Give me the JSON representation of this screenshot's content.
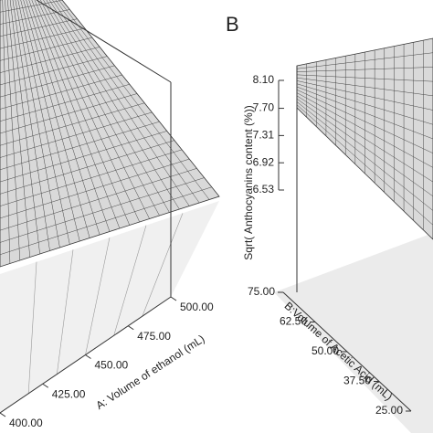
{
  "chart_data": [
    {
      "type": "surface",
      "x_label": "A: Volume of ethanol (mL)",
      "xlim": [
        400,
        500
      ],
      "xticks": [
        {
          "value": 400,
          "label": "400.00"
        },
        {
          "value": 425,
          "label": "425.00"
        },
        {
          "value": 450,
          "label": "450.00"
        },
        {
          "value": 475,
          "label": "475.00"
        },
        {
          "value": 500,
          "label": "500.00"
        }
      ],
      "color": "#d9d9d9"
    },
    {
      "type": "surface",
      "panel_label": "B",
      "z_label": "Sqrt( Anthocyanins content (%))",
      "zlim": [
        6.53,
        8.1
      ],
      "zticks": [
        {
          "value": 6.53,
          "label": "6.53"
        },
        {
          "value": 6.92,
          "label": "6.92"
        },
        {
          "value": 7.31,
          "label": "7.31"
        },
        {
          "value": 7.7,
          "label": "7.70"
        },
        {
          "value": 8.1,
          "label": "8.10"
        }
      ],
      "y_label": "B:Volume of Acetic Acid (mL)",
      "ylim": [
        25,
        75
      ],
      "yticks": [
        {
          "value": 25,
          "label": "25.00"
        },
        {
          "value": 37.5,
          "label": "37.50"
        },
        {
          "value": 50,
          "label": "50.00"
        },
        {
          "value": 62.5,
          "label": "62.50"
        },
        {
          "value": 75,
          "label": "75.00"
        }
      ],
      "color": "#d9d9d9"
    }
  ]
}
